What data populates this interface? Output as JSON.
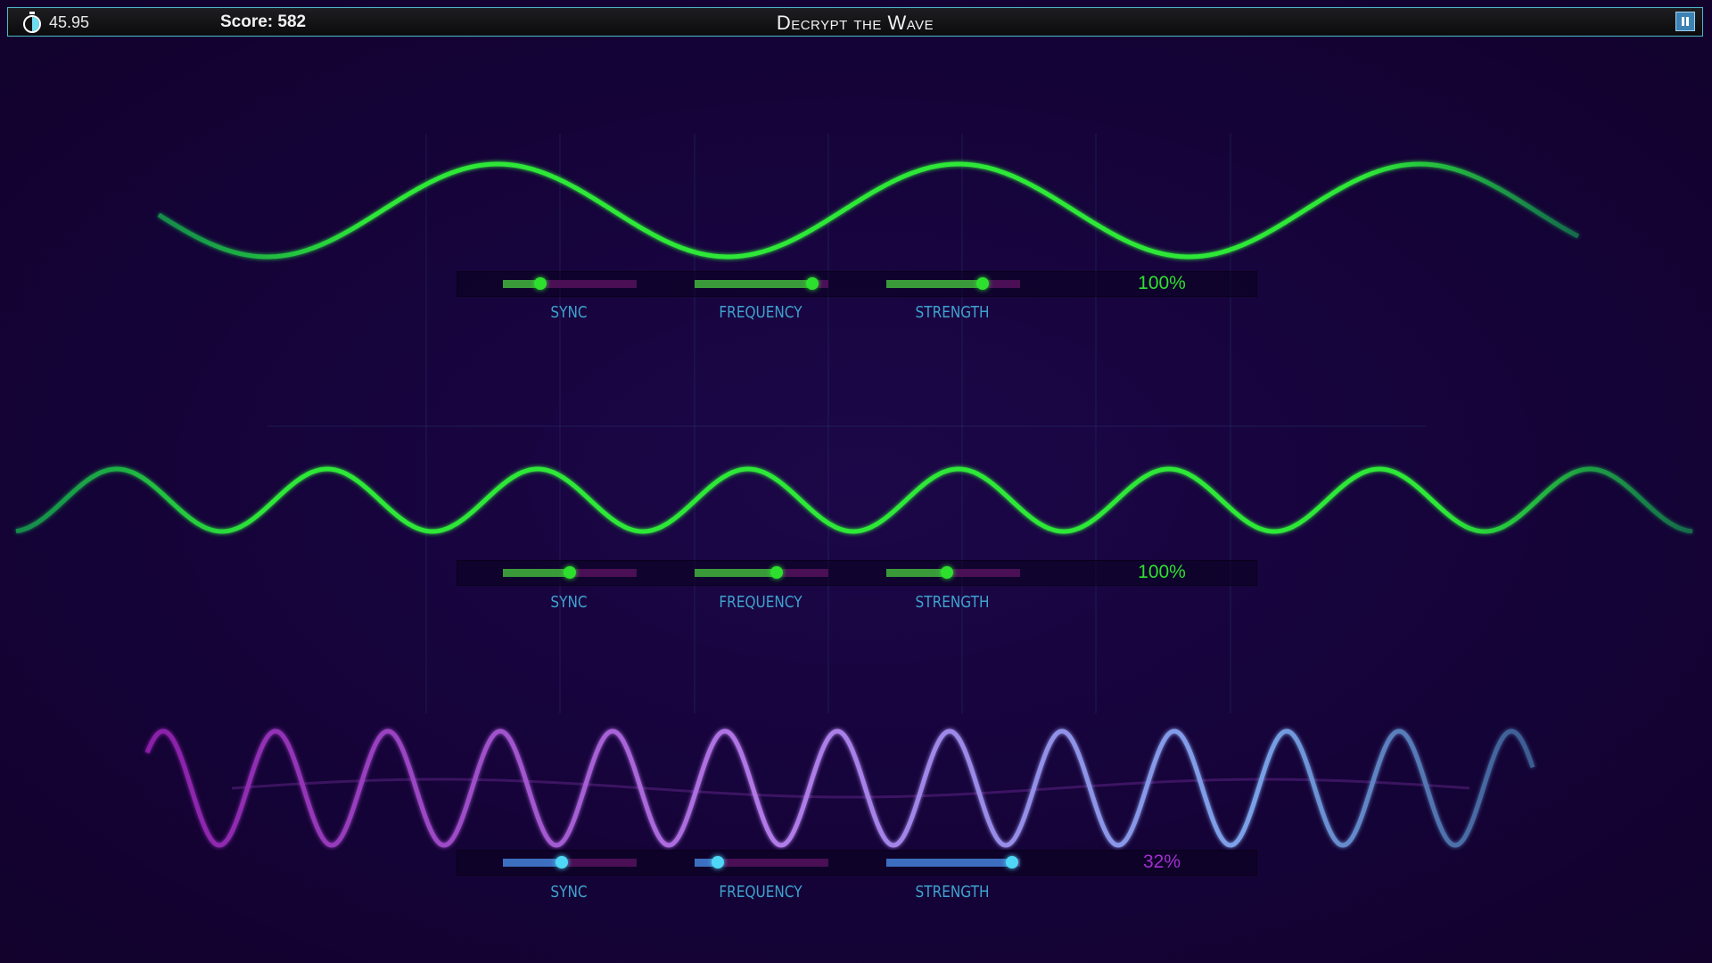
{
  "header": {
    "timer": "45.95",
    "score": "Score: 582",
    "title": "Decrypt the Wave",
    "timer_icon": "stopwatch-icon",
    "pause_icon": "pause-icon"
  },
  "panels": [
    {
      "sync": 0.28,
      "frequency": 0.88,
      "strength": 0.72,
      "percent": "100%",
      "state": "solved",
      "labels": {
        "sync": "SYNC",
        "frequency": "FREQUENCY",
        "strength": "STRENGTH"
      }
    },
    {
      "sync": 0.5,
      "frequency": 0.61,
      "strength": 0.45,
      "percent": "100%",
      "state": "solved",
      "labels": {
        "sync": "SYNC",
        "frequency": "FREQUENCY",
        "strength": "STRENGTH"
      }
    },
    {
      "sync": 0.44,
      "frequency": 0.17,
      "strength": 0.94,
      "percent": "32%",
      "state": "active",
      "labels": {
        "sync": "SYNC",
        "frequency": "FREQUENCY",
        "strength": "STRENGTH"
      }
    }
  ],
  "colors": {
    "solved": "#2ee02e",
    "active_fill": "#3d6fc0",
    "active_knob": "#4fd8f5",
    "percent_active": "#a22fd0",
    "track": "#4a0f55"
  }
}
